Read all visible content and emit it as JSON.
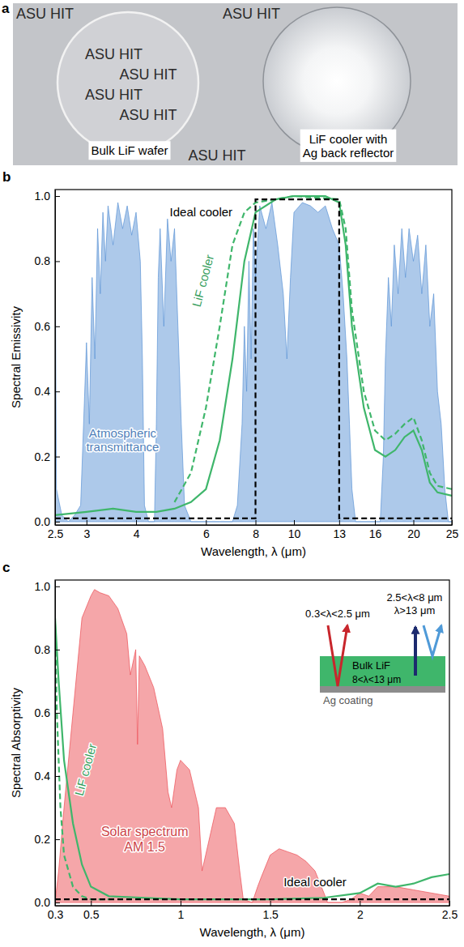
{
  "photo": {
    "panel": "a",
    "background_text": "ASU HIT",
    "labels": [
      "Bulk LiF wafer",
      "LiF cooler with Ag back reflector"
    ]
  },
  "chart_data": [
    {
      "panel": "b",
      "type": "line",
      "x_label": "Wavelength, λ (μm)",
      "y_label": "Spectral Emissivity",
      "log": "x",
      "grid": false,
      "xlim": [
        2.5,
        25
      ],
      "xticks": [
        2.5,
        3,
        4,
        6,
        8,
        10,
        13,
        16,
        20,
        25
      ],
      "ylim": [
        -0.01,
        1.02
      ],
      "yticks": [
        {
          "value": 0,
          "label": "0.0"
        },
        0.2,
        0.4,
        0.6,
        0.8,
        {
          "value": 1,
          "label": "1.0"
        }
      ],
      "series": [
        {
          "name": "Atmospheric transmittance",
          "type": "area",
          "color": "#5b93d6",
          "x": [
            2.5,
            2.52,
            2.6,
            2.7,
            2.8,
            2.9,
            2.95,
            3.0,
            3.05,
            3.1,
            3.15,
            3.2,
            3.25,
            3.3,
            3.35,
            3.4,
            3.5,
            3.6,
            3.7,
            3.8,
            3.9,
            4.0,
            4.1,
            4.15,
            4.2,
            4.3,
            4.45,
            4.5,
            4.55,
            4.6,
            4.7,
            4.8,
            4.9,
            5.0,
            5.1,
            5.2,
            5.3,
            5.5,
            6.0,
            6.5,
            7.0,
            7.2,
            7.4,
            7.5,
            7.6,
            7.7,
            7.8,
            7.9,
            8.0,
            8.2,
            8.5,
            8.8,
            9.1,
            9.4,
            9.6,
            9.8,
            10.0,
            10.5,
            11.0,
            11.5,
            12.0,
            12.5,
            13.0,
            13.3,
            13.6,
            13.8,
            14.0,
            14.3,
            16.0,
            16.5,
            16.8,
            17.0,
            17.3,
            17.6,
            17.9,
            18.3,
            18.7,
            19.1,
            19.5,
            20.0,
            20.5,
            21.0,
            21.5,
            22.0,
            22.5,
            23.0,
            23.5,
            24.0,
            24.5,
            25.0
          ],
          "values": [
            0.95,
            0.1,
            0.02,
            0.0,
            0.02,
            0.05,
            0.3,
            0.55,
            0.3,
            0.75,
            0.5,
            0.9,
            0.7,
            0.95,
            0.8,
            0.97,
            0.85,
            0.98,
            0.9,
            0.97,
            0.88,
            0.95,
            0.8,
            0.5,
            0.05,
            0.0,
            0.0,
            0.3,
            0.75,
            0.9,
            0.6,
            0.93,
            0.8,
            0.9,
            0.6,
            0.3,
            0.05,
            0.0,
            0.0,
            0.0,
            0.0,
            0.05,
            0.3,
            0.6,
            0.4,
            0.8,
            0.5,
            0.9,
            0.75,
            0.97,
            0.9,
            0.98,
            0.85,
            0.7,
            0.5,
            0.75,
            0.95,
            0.98,
            0.97,
            0.95,
            0.97,
            0.9,
            0.85,
            0.7,
            0.5,
            0.3,
            0.1,
            0.0,
            0.0,
            0.0,
            0.2,
            0.5,
            0.75,
            0.6,
            0.85,
            0.7,
            0.9,
            0.75,
            0.9,
            0.8,
            0.88,
            0.7,
            0.85,
            0.6,
            0.7,
            0.4,
            0.3,
            0.1,
            0.0,
            0.0
          ]
        },
        {
          "name": "LiF cooler",
          "type": "line",
          "line_style": "solid",
          "color": "#3fb66b",
          "x": [
            2.5,
            3,
            3.5,
            4,
            4.5,
            5,
            5.5,
            6,
            6.5,
            7,
            7.5,
            8,
            9,
            10,
            12,
            13,
            13.5,
            14,
            15,
            16,
            17,
            18,
            19,
            20,
            21,
            22,
            23,
            25
          ],
          "values": [
            0.02,
            0.03,
            0.04,
            0.03,
            0.03,
            0.04,
            0.06,
            0.1,
            0.25,
            0.5,
            0.8,
            0.95,
            0.99,
            1.0,
            1.0,
            0.98,
            0.85,
            0.6,
            0.35,
            0.22,
            0.2,
            0.22,
            0.26,
            0.28,
            0.22,
            0.12,
            0.09,
            0.08
          ]
        },
        {
          "type": "line",
          "line_style": "dashed",
          "color": "#3fb66b",
          "x": [
            5,
            5.5,
            6,
            6.5,
            7,
            7.5,
            8,
            10,
            13,
            13.5,
            14,
            15,
            16,
            17,
            18,
            19,
            20,
            21,
            22,
            23,
            25
          ],
          "values": [
            0.06,
            0.15,
            0.35,
            0.6,
            0.85,
            0.95,
            0.98,
            1.0,
            0.99,
            0.9,
            0.65,
            0.4,
            0.28,
            0.25,
            0.27,
            0.3,
            0.32,
            0.25,
            0.15,
            0.11,
            0.1
          ]
        },
        {
          "name": "Ideal cooler",
          "type": "line",
          "line_style": "dashed",
          "color": "#000000",
          "x": [
            2.5,
            8,
            8,
            13,
            13,
            25
          ],
          "values": [
            0.01,
            0.01,
            0.99,
            0.99,
            0.01,
            0.01
          ]
        }
      ]
    },
    {
      "panel": "c",
      "type": "line",
      "x_label": "Wavelength, λ (μm)",
      "y_label": "Spectral Absorptivity",
      "grid": false,
      "xlim": [
        0.3,
        2.5
      ],
      "xticks": [
        0.3,
        0.5,
        1,
        1.5,
        2,
        2.5
      ],
      "ylim": [
        -0.01,
        1.02
      ],
      "yticks": [
        {
          "value": 0,
          "label": "0.0"
        },
        0.2,
        0.4,
        0.6,
        0.8,
        {
          "value": 1,
          "label": "1.0"
        }
      ],
      "series": [
        {
          "name": "Solar spectrum AM 1.5",
          "type": "area",
          "color": "#ec4e54",
          "x": [
            0.3,
            0.32,
            0.35,
            0.4,
            0.45,
            0.5,
            0.52,
            0.55,
            0.6,
            0.65,
            0.7,
            0.72,
            0.75,
            0.76,
            0.77,
            0.8,
            0.85,
            0.9,
            0.93,
            0.95,
            0.98,
            1.0,
            1.05,
            1.1,
            1.12,
            1.14,
            1.2,
            1.25,
            1.3,
            1.33,
            1.35,
            1.4,
            1.43,
            1.45,
            1.5,
            1.55,
            1.6,
            1.65,
            1.7,
            1.75,
            1.8,
            1.82,
            1.9,
            1.95,
            2.0,
            2.05,
            2.1,
            2.2,
            2.3,
            2.4,
            2.5
          ],
          "values": [
            0.0,
            0.1,
            0.3,
            0.6,
            0.9,
            0.97,
            0.99,
            0.98,
            0.97,
            0.93,
            0.85,
            0.72,
            0.8,
            0.5,
            0.78,
            0.75,
            0.68,
            0.55,
            0.35,
            0.3,
            0.42,
            0.45,
            0.42,
            0.3,
            0.1,
            0.15,
            0.3,
            0.3,
            0.25,
            0.1,
            0.01,
            0.0,
            0.05,
            0.08,
            0.15,
            0.17,
            0.16,
            0.15,
            0.13,
            0.1,
            0.03,
            0.0,
            0.0,
            0.01,
            0.03,
            0.02,
            0.05,
            0.05,
            0.04,
            0.03,
            0.02
          ]
        },
        {
          "name": "LiF cooler",
          "type": "line",
          "line_style": "solid",
          "color": "#3fb66b",
          "x": [
            0.3,
            0.32,
            0.35,
            0.4,
            0.45,
            0.5,
            0.6,
            0.8,
            1.0,
            1.5,
            1.8,
            2.0,
            2.1,
            2.2,
            2.3,
            2.4,
            2.5
          ],
          "values": [
            0.9,
            0.7,
            0.45,
            0.25,
            0.12,
            0.05,
            0.02,
            0.015,
            0.01,
            0.01,
            0.015,
            0.03,
            0.06,
            0.05,
            0.06,
            0.08,
            0.09
          ]
        },
        {
          "type": "line",
          "line_style": "dashed",
          "color": "#3fb66b",
          "x": [
            0.3,
            0.31,
            0.33,
            0.35,
            0.4,
            0.45,
            0.5,
            0.6
          ],
          "values": [
            0.88,
            0.6,
            0.3,
            0.15,
            0.05,
            0.02,
            0.01,
            0.01
          ]
        },
        {
          "name": "Ideal cooler",
          "type": "line",
          "line_style": "dashed",
          "color": "#000000",
          "x": [
            0.3,
            2.5
          ],
          "values": [
            0.01,
            0.01
          ]
        }
      ],
      "annotations": {
        "incident": "0.3<λ<2.5 μm",
        "emitted": "8<λ<13 μm",
        "reflected": [
          "2.5<λ<8 μm",
          "λ>13 μm"
        ],
        "layer": "Bulk LiF",
        "substrate": "Ag coating"
      }
    }
  ]
}
